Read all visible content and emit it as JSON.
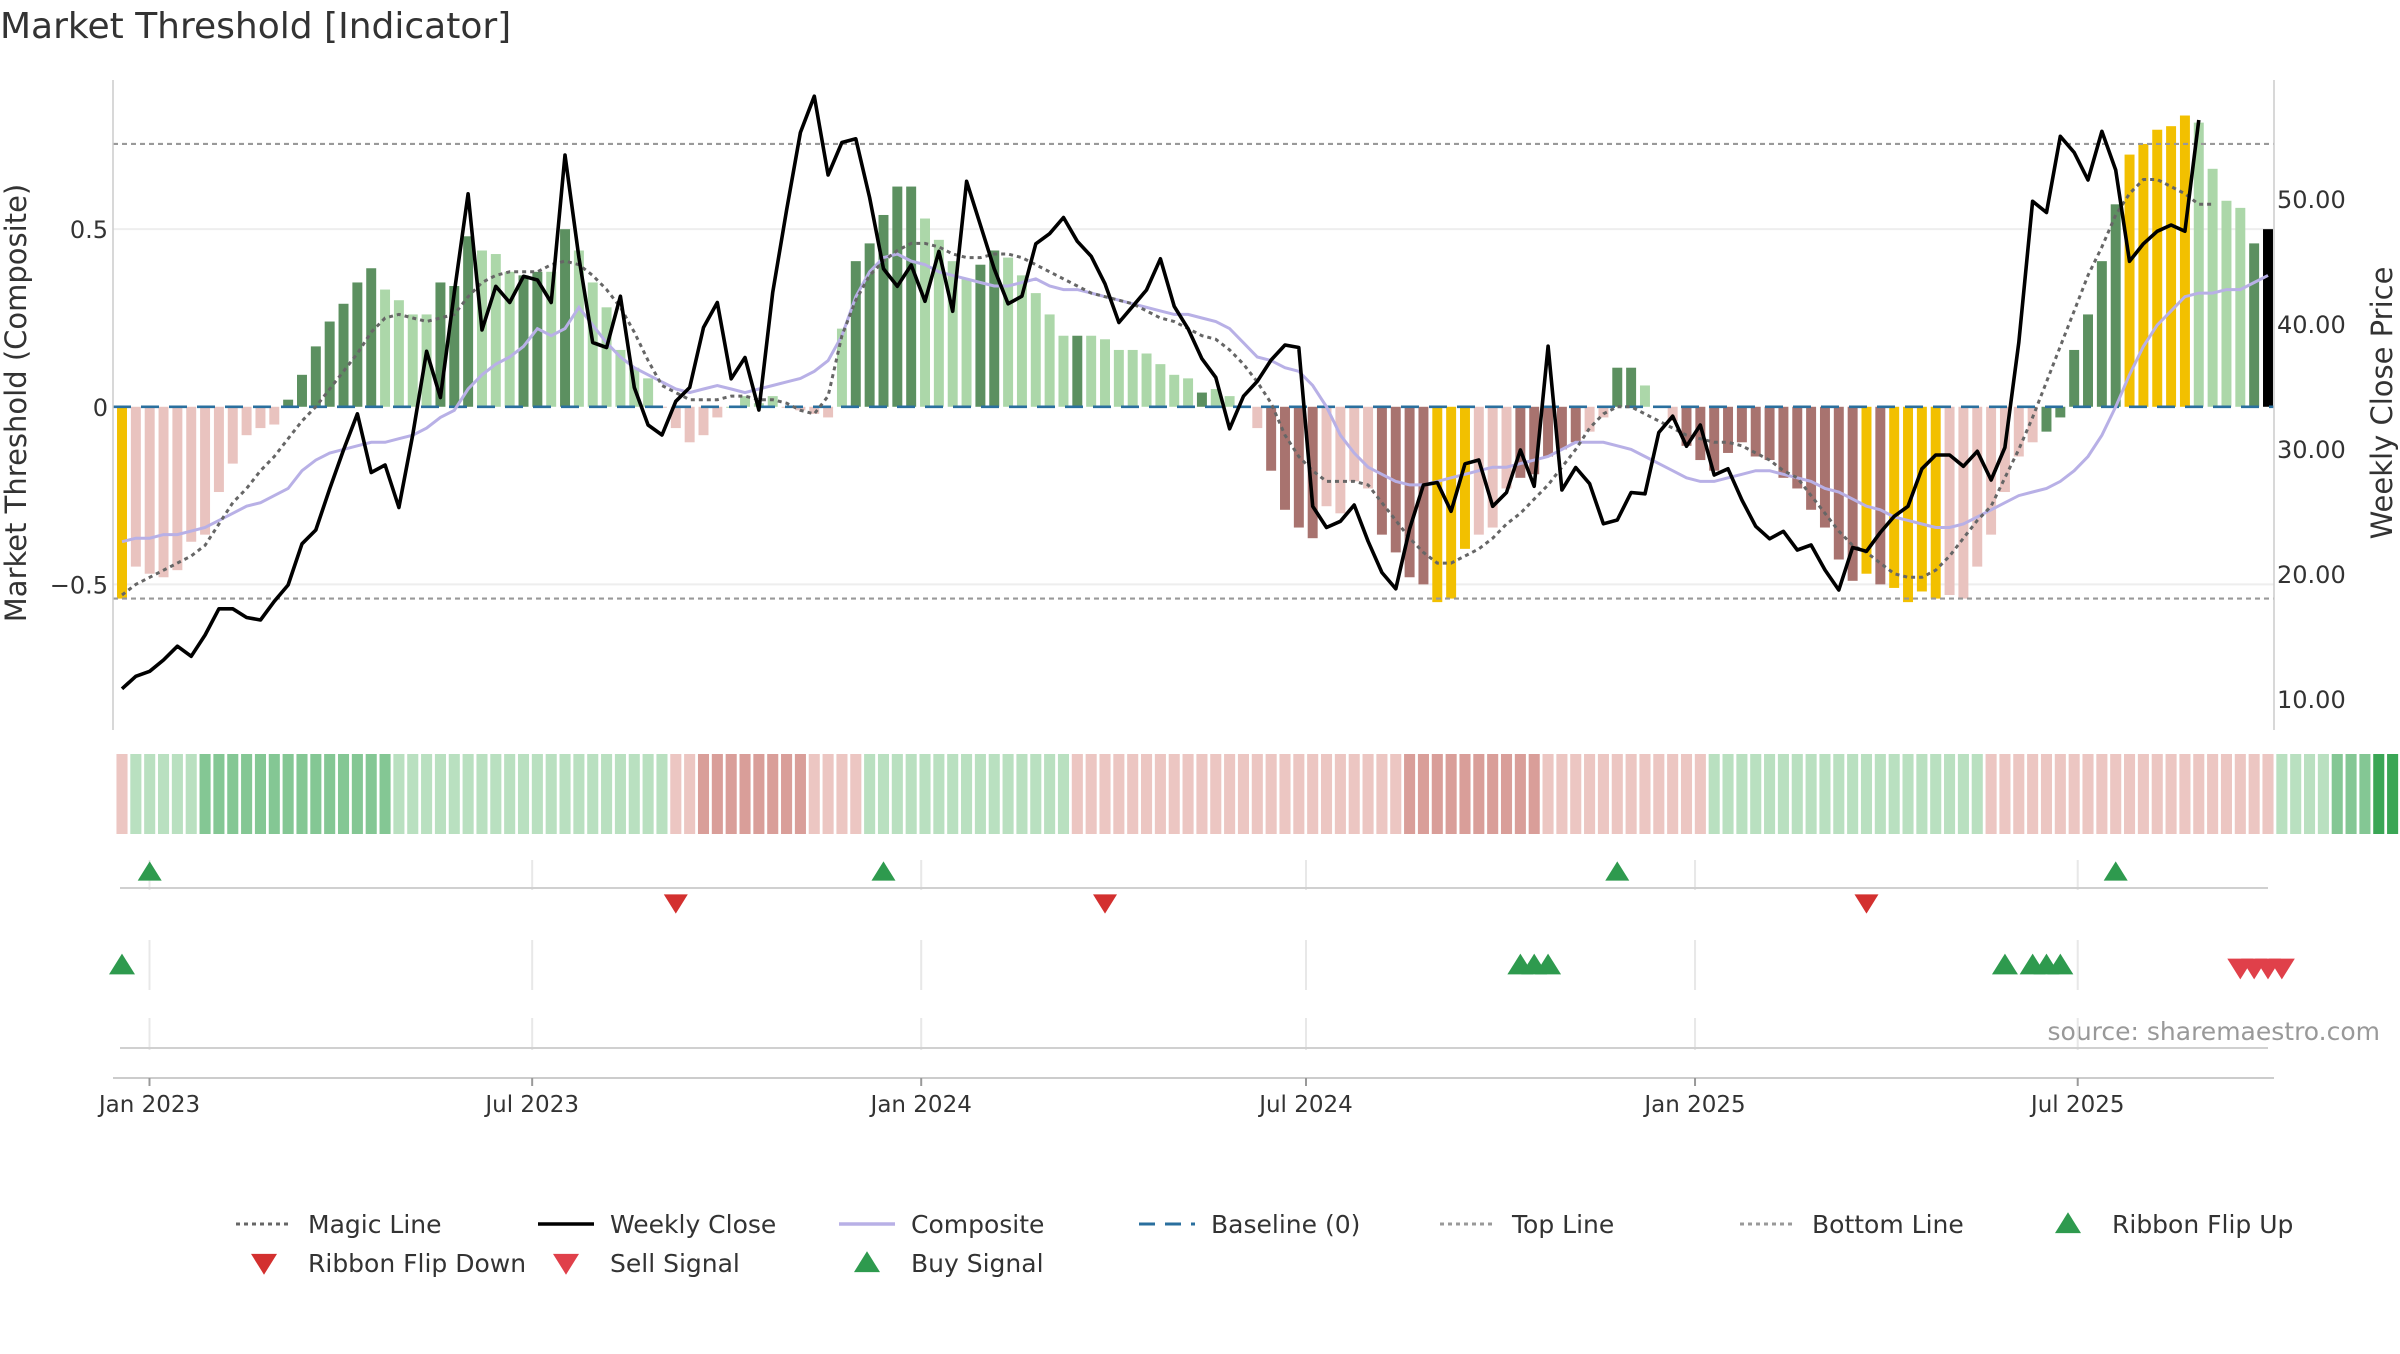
{
  "chart_data": {
    "type": "bar",
    "title": "Market Threshold [Indicator]",
    "ylabel": "Market Threshold (Composite)",
    "y2label": "Weekly Close Price",
    "source": "source: sharemaestro.com",
    "ylim": [
      -0.91,
      0.92
    ],
    "y2lim": [
      7.5,
      59.5
    ],
    "yticks": [
      -0.5,
      0,
      0.5
    ],
    "ytick_labels": [
      "−0.5",
      "0",
      "0.5"
    ],
    "y2ticks": [
      10,
      20,
      30,
      40,
      50
    ],
    "y2tick_labels": [
      "10.00",
      "20.00",
      "30.00",
      "40.00",
      "50.00"
    ],
    "x_start": "2022-12-19",
    "x_end": "2025-09-29",
    "xticks": [
      {
        "date": "2023-01-01",
        "label": "Jan 2023"
      },
      {
        "date": "2023-07-01",
        "label": "Jul 2023"
      },
      {
        "date": "2024-01-01",
        "label": "Jan 2024"
      },
      {
        "date": "2024-07-01",
        "label": "Jul 2024"
      },
      {
        "date": "2025-01-01",
        "label": "Jan 2025"
      },
      {
        "date": "2025-07-01",
        "label": "Jul 2025"
      }
    ],
    "top_line": 0.74,
    "bottom_line": -0.54,
    "grid": true,
    "legend_position": "bottom",
    "composite_values": [
      -0.54,
      -0.45,
      -0.47,
      -0.48,
      -0.46,
      -0.38,
      -0.36,
      -0.24,
      -0.16,
      -0.08,
      -0.06,
      -0.05,
      0.02,
      0.09,
      0.17,
      0.24,
      0.29,
      0.35,
      0.39,
      0.33,
      0.3,
      0.26,
      0.26,
      0.35,
      0.34,
      0.48,
      0.44,
      0.43,
      0.38,
      0.37,
      0.38,
      0.38,
      0.5,
      0.44,
      0.35,
      0.28,
      0.16,
      0.11,
      0.08,
      0.0,
      -0.06,
      -0.1,
      -0.08,
      -0.03,
      0.0,
      0.03,
      0.01,
      0.03,
      0.0,
      -0.01,
      -0.02,
      -0.03,
      0.22,
      0.41,
      0.46,
      0.54,
      0.62,
      0.62,
      0.53,
      0.47,
      0.41,
      0.36,
      0.4,
      0.44,
      0.42,
      0.37,
      0.32,
      0.26,
      0.2,
      0.2,
      0.2,
      0.19,
      0.16,
      0.16,
      0.15,
      0.12,
      0.09,
      0.08,
      0.04,
      0.05,
      0.03,
      0.0,
      -0.06,
      -0.18,
      -0.29,
      -0.34,
      -0.37,
      -0.28,
      -0.3,
      -0.21,
      -0.23,
      -0.36,
      -0.41,
      -0.48,
      -0.5,
      -0.55,
      -0.54,
      -0.4,
      -0.36,
      -0.34,
      -0.23,
      -0.2,
      -0.19,
      -0.14,
      -0.12,
      -0.1,
      -0.07,
      -0.03,
      0.11,
      0.11,
      0.06,
      0.0,
      -0.04,
      -0.11,
      -0.15,
      -0.18,
      -0.13,
      -0.1,
      -0.14,
      -0.15,
      -0.2,
      -0.23,
      -0.29,
      -0.34,
      -0.43,
      -0.49,
      -0.47,
      -0.5,
      -0.51,
      -0.55,
      -0.52,
      -0.54,
      -0.53,
      -0.54,
      -0.45,
      -0.36,
      -0.24,
      -0.14,
      -0.1,
      -0.07,
      -0.03,
      0.16,
      0.26,
      0.41,
      0.57,
      0.71,
      0.74,
      0.78,
      0.79,
      0.82,
      0.8,
      0.67,
      0.58,
      0.56,
      0.46,
      0.5
    ],
    "bar_classes": [
      4,
      1,
      1,
      1,
      1,
      1,
      1,
      1,
      1,
      1,
      1,
      1,
      3,
      3,
      3,
      3,
      3,
      3,
      3,
      2,
      2,
      2,
      2,
      3,
      3,
      3,
      2,
      2,
      2,
      3,
      3,
      2,
      3,
      2,
      2,
      2,
      2,
      2,
      2,
      1,
      1,
      1,
      1,
      1,
      2,
      2,
      2,
      2,
      1,
      1,
      1,
      1,
      2,
      3,
      3,
      3,
      3,
      3,
      2,
      2,
      2,
      2,
      3,
      3,
      2,
      2,
      2,
      2,
      2,
      3,
      2,
      2,
      2,
      2,
      2,
      2,
      2,
      2,
      3,
      2,
      2,
      1,
      1,
      0,
      0,
      0,
      0,
      1,
      1,
      1,
      1,
      0,
      0,
      0,
      0,
      4,
      4,
      4,
      1,
      1,
      1,
      0,
      0,
      0,
      0,
      0,
      1,
      1,
      3,
      3,
      2,
      2,
      1,
      0,
      0,
      0,
      0,
      0,
      0,
      0,
      0,
      0,
      0,
      0,
      0,
      0,
      4,
      0,
      4,
      4,
      4,
      4,
      1,
      1,
      1,
      1,
      1,
      1,
      1,
      3,
      3,
      3,
      3,
      3,
      3,
      4,
      4,
      4,
      4,
      4,
      2,
      2,
      2,
      2,
      3
    ],
    "bar_colors": {
      "strong_negative": "#a8736f",
      "weak_negative": "#e9c3bf",
      "weak_positive": "#acd7a9",
      "strong_positive": "#5c9060",
      "extreme": "#f2c000"
    },
    "weekly_close": [
      10.8,
      11.8,
      12.2,
      13.1,
      14.2,
      13.4,
      15.1,
      17.2,
      17.2,
      16.5,
      16.3,
      17.8,
      19.1,
      22.4,
      23.5,
      26.8,
      29.9,
      32.8,
      28.1,
      28.7,
      25.3,
      31.1,
      37.8,
      34.1,
      42.5,
      50.4,
      39.5,
      43.0,
      41.7,
      43.8,
      43.5,
      41.7,
      53.5,
      45.3,
      38.5,
      38.1,
      42.2,
      34.9,
      31.9,
      31.1,
      33.8,
      34.9,
      39.7,
      41.7,
      35.6,
      37.3,
      33.1,
      42.5,
      49.1,
      55.3,
      58.2,
      51.9,
      54.5,
      54.8,
      50.1,
      44.4,
      43.0,
      44.7,
      41.8,
      45.8,
      41.0,
      51.4,
      47.9,
      44.4,
      41.6,
      42.2,
      46.4,
      47.2,
      48.5,
      46.6,
      45.4,
      43.2,
      40.1,
      41.4,
      42.7,
      45.2,
      41.4,
      39.6,
      37.2,
      35.7,
      31.6,
      34.2,
      35.4,
      37.1,
      38.3,
      38.1,
      25.4,
      23.7,
      24.2,
      25.5,
      22.6,
      20.1,
      18.8,
      23.6,
      27.1,
      27.3,
      25.0,
      28.8,
      29.1,
      25.4,
      26.5,
      29.9,
      27.0,
      38.2,
      26.7,
      28.5,
      27.2,
      24.0,
      24.3,
      26.5,
      26.4,
      31.3,
      32.6,
      30.2,
      31.9,
      27.9,
      28.4,
      25.9,
      23.8,
      22.8,
      23.4,
      21.9,
      22.3,
      20.3,
      18.7,
      22.1,
      21.8,
      23.3,
      24.6,
      25.4,
      28.4,
      29.5,
      29.5,
      28.6,
      29.8,
      27.5,
      30.1,
      38.5,
      49.8,
      48.9,
      55.0,
      53.7,
      51.5,
      55.4,
      52.3,
      45.0,
      46.4,
      47.4,
      47.9,
      47.4,
      56.3
    ],
    "composite_line": [
      -0.38,
      -0.37,
      -0.37,
      -0.36,
      -0.36,
      -0.35,
      -0.34,
      -0.32,
      -0.3,
      -0.28,
      -0.27,
      -0.25,
      -0.23,
      -0.18,
      -0.15,
      -0.13,
      -0.12,
      -0.11,
      -0.1,
      -0.1,
      -0.09,
      -0.08,
      -0.06,
      -0.03,
      -0.01,
      0.05,
      0.09,
      0.12,
      0.14,
      0.17,
      0.22,
      0.2,
      0.22,
      0.28,
      0.23,
      0.18,
      0.14,
      0.11,
      0.09,
      0.07,
      0.05,
      0.04,
      0.05,
      0.06,
      0.05,
      0.04,
      0.05,
      0.06,
      0.07,
      0.08,
      0.1,
      0.13,
      0.2,
      0.31,
      0.38,
      0.42,
      0.43,
      0.41,
      0.4,
      0.38,
      0.37,
      0.36,
      0.35,
      0.34,
      0.34,
      0.35,
      0.36,
      0.34,
      0.33,
      0.33,
      0.32,
      0.31,
      0.3,
      0.29,
      0.28,
      0.27,
      0.26,
      0.26,
      0.25,
      0.24,
      0.22,
      0.18,
      0.14,
      0.13,
      0.11,
      0.1,
      0.06,
      0.0,
      -0.08,
      -0.13,
      -0.17,
      -0.19,
      -0.21,
      -0.22,
      -0.22,
      -0.21,
      -0.2,
      -0.19,
      -0.18,
      -0.17,
      -0.17,
      -0.16,
      -0.15,
      -0.14,
      -0.12,
      -0.1,
      -0.1,
      -0.1,
      -0.11,
      -0.12,
      -0.14,
      -0.16,
      -0.18,
      -0.2,
      -0.21,
      -0.21,
      -0.2,
      -0.19,
      -0.18,
      -0.18,
      -0.19,
      -0.2,
      -0.21,
      -0.23,
      -0.24,
      -0.26,
      -0.28,
      -0.29,
      -0.31,
      -0.32,
      -0.33,
      -0.34,
      -0.34,
      -0.33,
      -0.31,
      -0.29,
      -0.27,
      -0.25,
      -0.24,
      -0.23,
      -0.21,
      -0.18,
      -0.14,
      -0.08,
      0.0,
      0.09,
      0.17,
      0.23,
      0.27,
      0.31,
      0.32,
      0.32,
      0.33,
      0.33,
      0.35,
      0.37
    ],
    "magic_line": [
      -0.53,
      -0.5,
      -0.48,
      -0.46,
      -0.44,
      -0.42,
      -0.39,
      -0.33,
      -0.27,
      -0.23,
      -0.18,
      -0.14,
      -0.09,
      -0.04,
      0.0,
      0.05,
      0.1,
      0.15,
      0.21,
      0.25,
      0.26,
      0.25,
      0.24,
      0.25,
      0.26,
      0.31,
      0.35,
      0.37,
      0.38,
      0.38,
      0.38,
      0.4,
      0.41,
      0.4,
      0.37,
      0.33,
      0.28,
      0.21,
      0.13,
      0.06,
      0.04,
      0.02,
      0.02,
      0.02,
      0.03,
      0.03,
      0.02,
      0.02,
      0.01,
      -0.01,
      -0.02,
      0.03,
      0.2,
      0.3,
      0.37,
      0.41,
      0.44,
      0.46,
      0.46,
      0.45,
      0.43,
      0.42,
      0.42,
      0.43,
      0.43,
      0.42,
      0.4,
      0.38,
      0.36,
      0.34,
      0.32,
      0.31,
      0.3,
      0.29,
      0.27,
      0.25,
      0.24,
      0.22,
      0.2,
      0.19,
      0.16,
      0.12,
      0.07,
      0.01,
      -0.08,
      -0.14,
      -0.18,
      -0.21,
      -0.21,
      -0.21,
      -0.22,
      -0.27,
      -0.32,
      -0.37,
      -0.41,
      -0.44,
      -0.44,
      -0.42,
      -0.4,
      -0.37,
      -0.33,
      -0.3,
      -0.26,
      -0.22,
      -0.17,
      -0.12,
      -0.06,
      -0.02,
      0.0,
      0.0,
      -0.02,
      -0.04,
      -0.06,
      -0.08,
      -0.09,
      -0.1,
      -0.1,
      -0.11,
      -0.13,
      -0.15,
      -0.18,
      -0.2,
      -0.25,
      -0.3,
      -0.35,
      -0.39,
      -0.41,
      -0.44,
      -0.47,
      -0.48,
      -0.48,
      -0.46,
      -0.42,
      -0.37,
      -0.32,
      -0.28,
      -0.2,
      -0.12,
      -0.03,
      0.07,
      0.17,
      0.27,
      0.37,
      0.45,
      0.54,
      0.6,
      0.64,
      0.64,
      0.62,
      0.6,
      0.57,
      0.57
    ],
    "ribbon_levels": [
      -1,
      1,
      1,
      1,
      1,
      1,
      2,
      2,
      2,
      2,
      2,
      2,
      2,
      2,
      2,
      2,
      2,
      2,
      2,
      2,
      1,
      1,
      1,
      1,
      1,
      1,
      1,
      1,
      1,
      1,
      1,
      1,
      1,
      1,
      1,
      1,
      1,
      1,
      1,
      1,
      -1,
      -1,
      -2,
      -2,
      -2,
      -2,
      -2,
      -2,
      -2,
      -2,
      -1,
      -1,
      -1,
      -1,
      1,
      1,
      1,
      1,
      1,
      1,
      1,
      1,
      1,
      1,
      1,
      1,
      1,
      1,
      1,
      -1,
      -1,
      -1,
      -1,
      -1,
      -1,
      -1,
      -1,
      -1,
      -1,
      -1,
      -1,
      -1,
      -1,
      -1,
      -1,
      -1,
      -1,
      -1,
      -1,
      -1,
      -1,
      -1,
      -1,
      -2,
      -2,
      -2,
      -2,
      -2,
      -2,
      -2,
      -2,
      -2,
      -2,
      -1,
      -1,
      -1,
      -1,
      -1,
      -1,
      -1,
      -1,
      -1,
      -1,
      -1,
      -1,
      1,
      1,
      1,
      1,
      1,
      1,
      1,
      1,
      1,
      1,
      1,
      1,
      1,
      1,
      1,
      1,
      1,
      1,
      1,
      1,
      -1,
      -1,
      -1,
      -1,
      -1,
      -1,
      -1,
      -1,
      -1,
      -1,
      -1,
      -1,
      -1,
      -1,
      -1,
      -1,
      -1,
      -1,
      -1,
      -1,
      -1,
      1,
      1,
      1,
      1,
      2,
      2,
      2,
      3,
      3,
      3,
      3,
      3,
      3,
      3,
      3,
      3,
      2,
      2,
      2,
      1,
      1,
      1
    ],
    "ribbon_colors": {
      "-2": "#d99e99",
      "-1": "#ecc6c2",
      "1": "#b9e0c0",
      "2": "#84c794",
      "3": "#3aa655"
    },
    "ribbon_flip_up": [
      2,
      55,
      108,
      144
    ],
    "ribbon_flip_down": [
      40,
      71,
      126
    ],
    "buy_signals": [
      0,
      101,
      102,
      103,
      136,
      138,
      139,
      140
    ],
    "sell_signals": [
      153,
      154,
      155,
      156
    ],
    "legend": [
      {
        "label": "Magic Line",
        "kind": "dotted-line",
        "color": "#666666"
      },
      {
        "label": "Weekly Close",
        "kind": "line",
        "color": "#000000"
      },
      {
        "label": "Composite",
        "kind": "line",
        "color": "#b8b0e6"
      },
      {
        "label": "Baseline (0)",
        "kind": "dashed-line",
        "color": "#2a6f9e"
      },
      {
        "label": "Top Line",
        "kind": "dotted-line",
        "color": "#999999"
      },
      {
        "label": "Bottom Line",
        "kind": "dotted-line",
        "color": "#999999"
      },
      {
        "label": "Ribbon Flip Up",
        "kind": "triangle-up",
        "color": "#2e9a4e"
      },
      {
        "label": "Ribbon Flip Down",
        "kind": "triangle-down",
        "color": "#d3302f"
      },
      {
        "label": "Sell Signal",
        "kind": "triangle-down",
        "color": "#e0404a"
      },
      {
        "label": "Buy Signal",
        "kind": "triangle-up",
        "color": "#2e9a4e"
      }
    ],
    "colors": {
      "weekly_close": "#000000",
      "composite_line": "#b8b0e6",
      "magic_line": "#666666",
      "baseline": "#2a6f9e",
      "threshold_lines": "#999999",
      "up_marker": "#2e9a4e",
      "down_marker": "#d3302f",
      "sell_marker": "#e0404a"
    }
  }
}
